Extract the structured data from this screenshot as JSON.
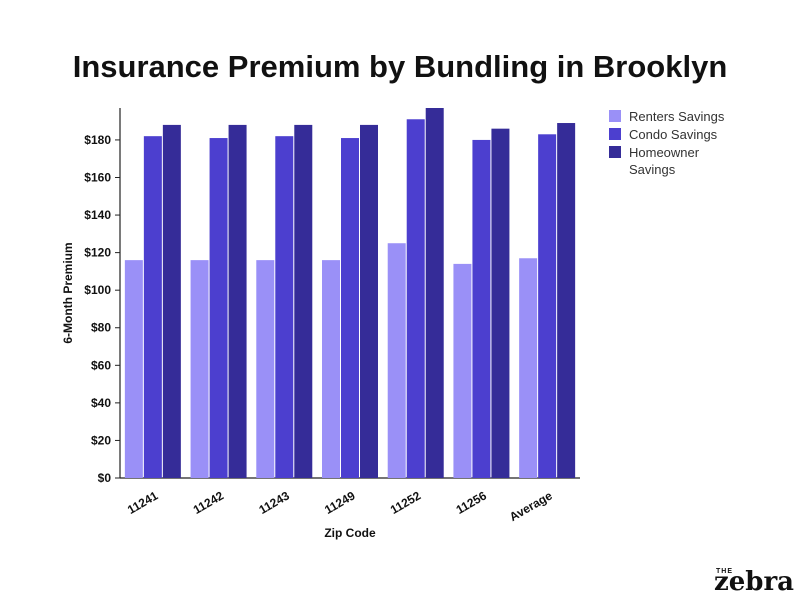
{
  "chart_data": {
    "type": "bar",
    "title": "Insurance Premium by Bundling in Brooklyn",
    "xlabel": "Zip Code",
    "ylabel": "6-Month Premium",
    "categories": [
      "11241",
      "11242",
      "11243",
      "11249",
      "11252",
      "11256",
      "Average"
    ],
    "series": [
      {
        "name": "Renters Savings",
        "color": "#9a90f7",
        "values": [
          116,
          116,
          116,
          116,
          125,
          114,
          117
        ]
      },
      {
        "name": "Condo Savings",
        "color": "#4c3fcf",
        "values": [
          182,
          181,
          182,
          181,
          191,
          180,
          183
        ]
      },
      {
        "name": "Homeowner Savings",
        "color": "#352c98",
        "values": [
          188,
          188,
          188,
          188,
          197,
          186,
          189
        ]
      }
    ],
    "ylim": [
      0,
      197
    ],
    "yticks": [
      0,
      20,
      40,
      60,
      80,
      100,
      120,
      140,
      160,
      180
    ],
    "ytick_labels": [
      "$0",
      "$20",
      "$40",
      "$60",
      "$80",
      "$100",
      "$120",
      "$140",
      "$160",
      "$180"
    ],
    "grid": false,
    "legend_position": "top-right"
  },
  "logo": {
    "small": "THE",
    "big": "zebra"
  }
}
